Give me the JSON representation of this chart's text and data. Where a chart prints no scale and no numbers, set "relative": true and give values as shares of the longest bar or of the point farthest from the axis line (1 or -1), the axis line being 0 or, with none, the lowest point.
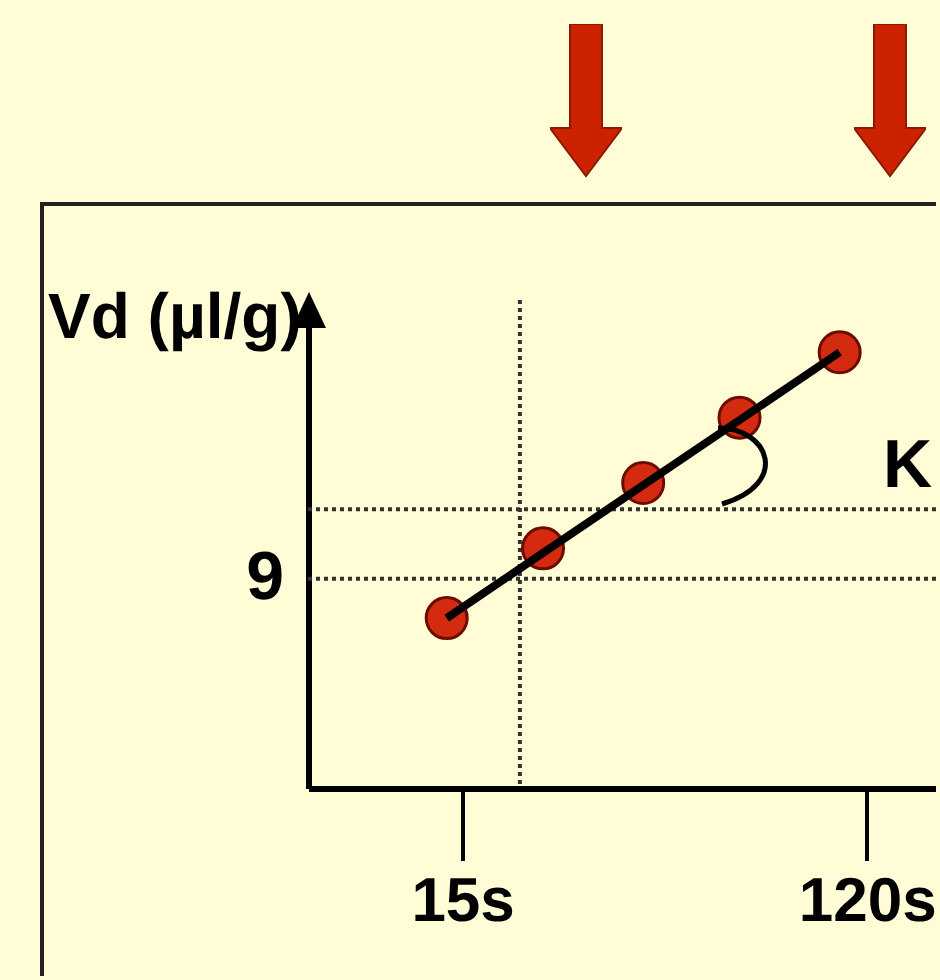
{
  "chart_data": {
    "type": "scatter",
    "ylabel": "Vd (µl/g)",
    "relative": true,
    "xlim": [
      -25,
      138
    ],
    "xticks": [
      {
        "value": 15,
        "label": "15s"
      },
      {
        "value": 120,
        "label": "120s"
      }
    ],
    "marker": "circle",
    "series": [
      {
        "type": "line",
        "marker": "none",
        "color": "#000000",
        "x": [
          11,
          113
        ],
        "values": [
          0.39,
          1.0
        ]
      },
      {
        "color": "#d42a10",
        "x": [
          11,
          36,
          62,
          87,
          113
        ],
        "values": [
          0.39,
          0.55,
          0.7,
          0.85,
          1.0
        ]
      }
    ],
    "ref_lines": [
      {
        "axis": "y",
        "value": 0.48,
        "line_style": "dotted"
      },
      {
        "axis": "x",
        "value": 30,
        "line_style": "dotted"
      },
      {
        "axis": "y",
        "value": 0.64,
        "line_style": "dotted"
      }
    ],
    "annotations": [
      "9",
      "K"
    ]
  }
}
